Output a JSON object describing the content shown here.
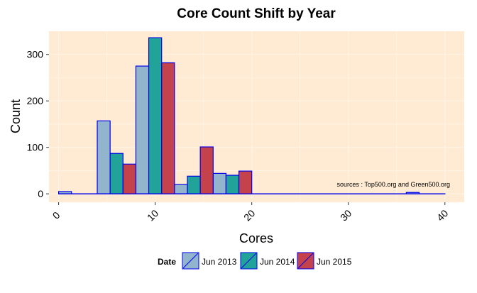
{
  "chart_data": {
    "type": "bar",
    "title": "Core Count Shift by Year",
    "xlabel": "Cores",
    "ylabel": "Count",
    "xlim": [
      -1,
      42
    ],
    "ylim": [
      -18,
      350
    ],
    "x_ticks": [
      0,
      10,
      20,
      30,
      40
    ],
    "x_tick_labels": [
      "0",
      "10",
      "20",
      "30",
      "40"
    ],
    "y_ticks": [
      0,
      100,
      200,
      300
    ],
    "y_tick_labels": [
      "0",
      "100",
      "200",
      "300"
    ],
    "grid": true,
    "legend": {
      "title": "Date",
      "position": "bottom"
    },
    "annotation": "sources :  Top500.org and Green500.org",
    "bin_width": 1.333,
    "bar_outline_color": "#0000ee",
    "panel_background": "#ffebd3",
    "series": [
      {
        "name": "Jun 2013",
        "color": "#92b4cc",
        "x": [
          0,
          1.333,
          2.667,
          4,
          5.333,
          6.667,
          8,
          9.333,
          10.667,
          12,
          13.333,
          14.667,
          16,
          17.333,
          18.667,
          20,
          21.333,
          22.667,
          24,
          25.333,
          26.667,
          28,
          29.333,
          30.667,
          32,
          33.333,
          34.667,
          36,
          37.333,
          38.667
        ],
        "values": [
          5,
          0,
          0,
          157,
          0,
          0,
          275,
          0,
          0,
          20,
          0,
          0,
          44,
          0,
          0,
          0,
          0,
          0,
          0,
          0,
          0,
          0,
          0,
          0,
          0,
          0,
          0,
          3,
          0,
          0
        ]
      },
      {
        "name": "Jun 2014",
        "color": "#22a39a",
        "x": [
          0,
          1.333,
          2.667,
          4,
          5.333,
          6.667,
          8,
          9.333,
          10.667,
          12,
          13.333,
          14.667,
          16,
          17.333,
          18.667,
          20,
          21.333,
          22.667,
          24,
          25.333,
          26.667,
          28,
          29.333,
          30.667,
          32,
          33.333,
          34.667,
          36,
          37.333,
          38.667
        ],
        "values": [
          0,
          0,
          0,
          0,
          87,
          0,
          0,
          336,
          0,
          0,
          38,
          0,
          0,
          40,
          0,
          0,
          0,
          0,
          0,
          0,
          0,
          0,
          0,
          0,
          0,
          0,
          0,
          0,
          0,
          0
        ]
      },
      {
        "name": "Jun 2015",
        "color": "#c4424c",
        "x": [
          0,
          1.333,
          2.667,
          4,
          5.333,
          6.667,
          8,
          9.333,
          10.667,
          12,
          13.333,
          14.667,
          16,
          17.333,
          18.667,
          20,
          21.333,
          22.667,
          24,
          25.333,
          26.667,
          28,
          29.333,
          30.667,
          32,
          33.333,
          34.667,
          36,
          37.333,
          38.667
        ],
        "values": [
          0,
          0,
          0,
          0,
          0,
          64,
          0,
          0,
          282,
          0,
          0,
          101,
          0,
          0,
          49,
          0,
          0,
          0,
          0,
          0,
          0,
          0,
          0,
          0,
          0,
          0,
          0,
          0,
          0,
          0
        ]
      }
    ]
  }
}
